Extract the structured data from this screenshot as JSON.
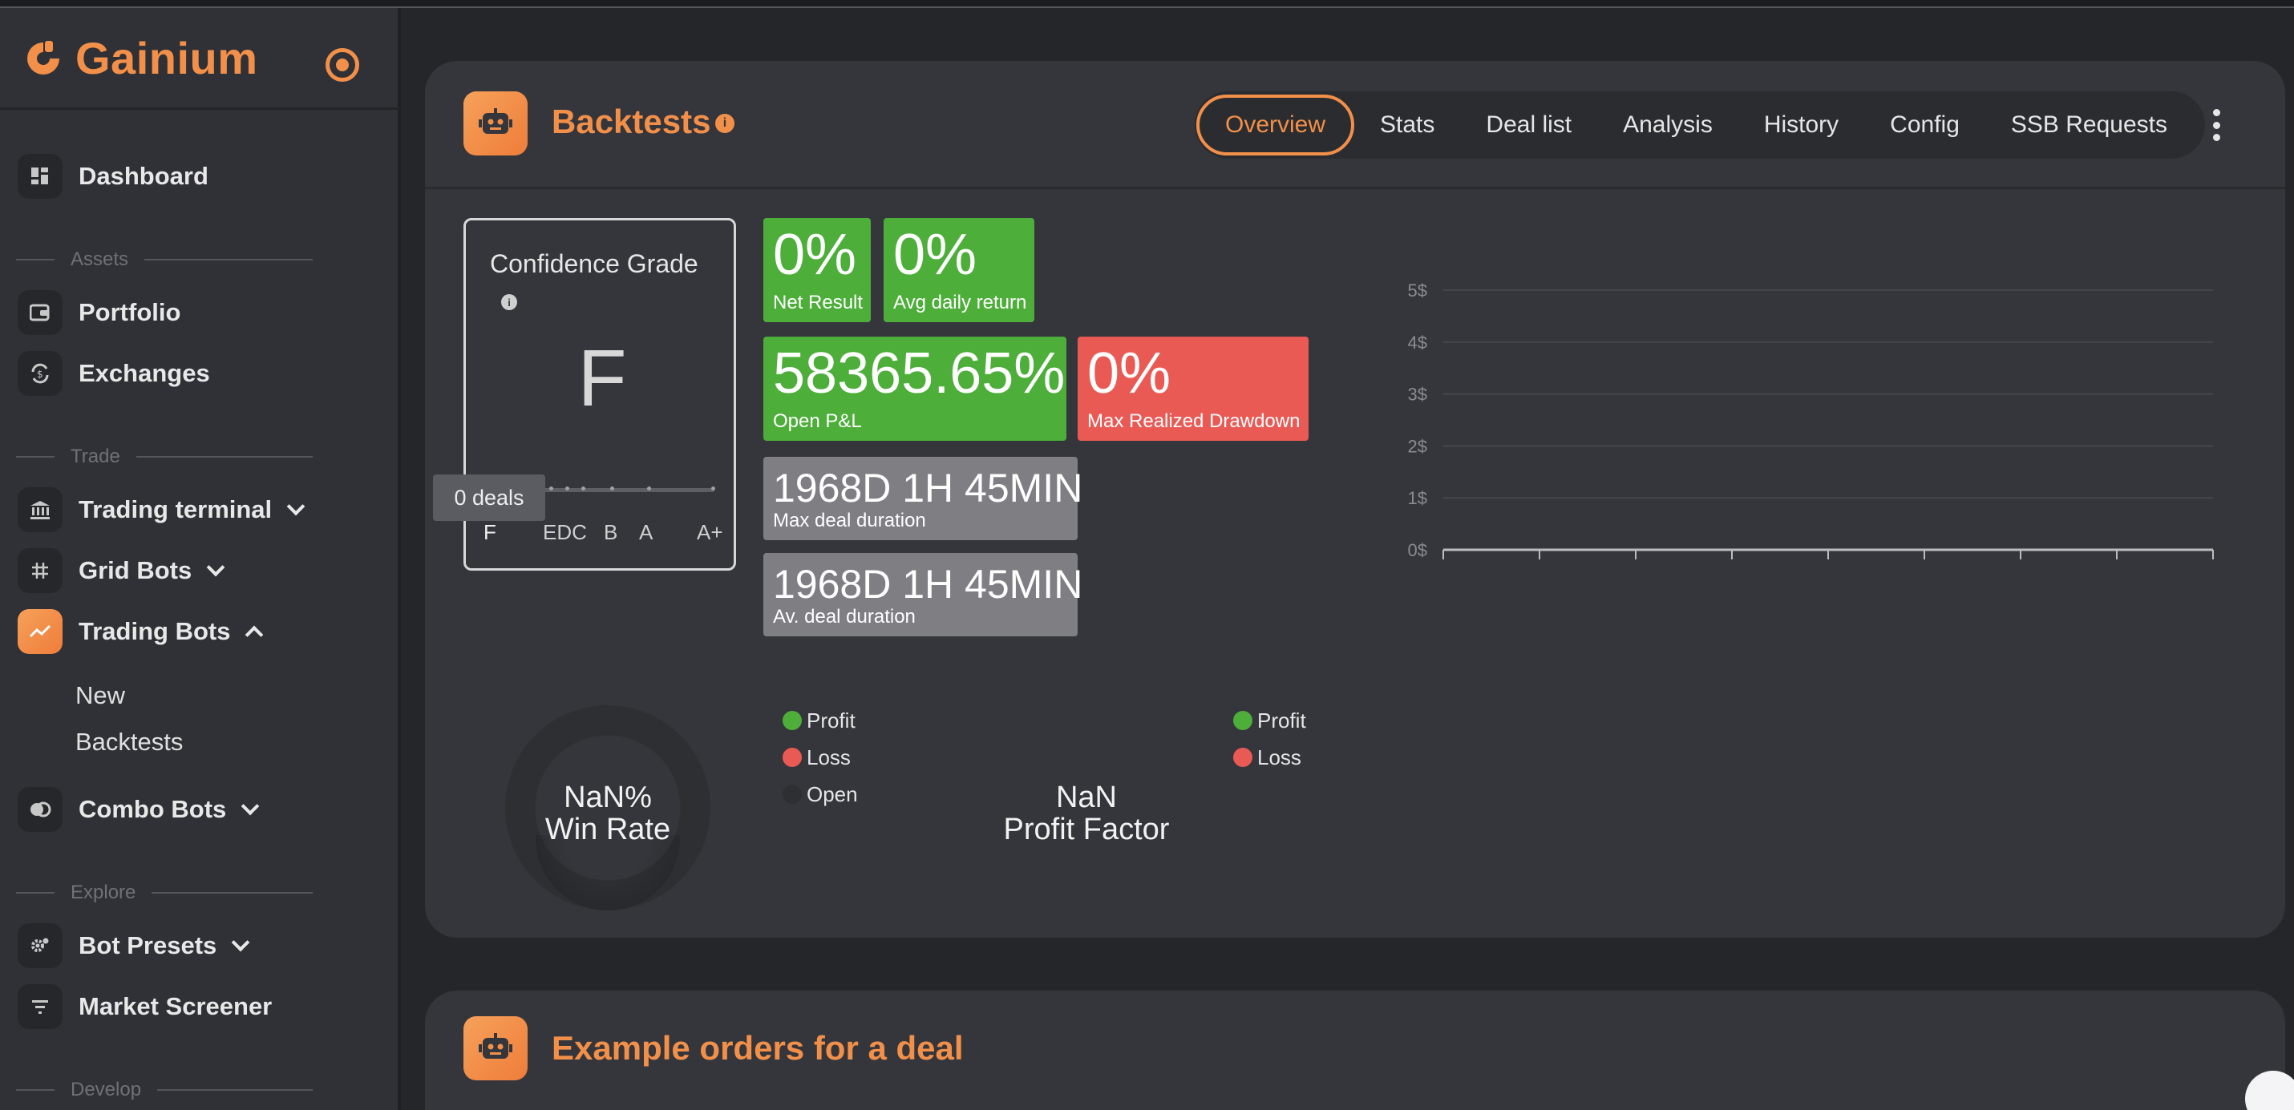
{
  "app": {
    "name": "Gainium"
  },
  "sidebar": {
    "dashboard": "Dashboard",
    "sections": {
      "assets": "Assets",
      "trade": "Trade",
      "explore": "Explore",
      "develop": "Develop"
    },
    "portfolio": "Portfolio",
    "exchanges": "Exchanges",
    "trading_terminal": "Trading terminal",
    "grid_bots": "Grid Bots",
    "trading_bots": "Trading Bots",
    "trading_bots_sub": [
      "New",
      "Backtests"
    ],
    "combo_bots": "Combo Bots",
    "bot_presets": "Bot Presets",
    "market_screener": "Market Screener"
  },
  "header": {
    "title": "Backtests",
    "tabs": [
      "Overview",
      "Stats",
      "Deal list",
      "Analysis",
      "History",
      "Config",
      "SSB Requests"
    ],
    "active_tab": "Overview"
  },
  "confidence": {
    "title": "Confidence Grade",
    "grade": "F",
    "deals_tooltip": "0 deals",
    "scale": [
      "F",
      "EDC",
      "B",
      "A",
      "A+"
    ]
  },
  "stats": {
    "net_result": {
      "value": "0%",
      "label": "Net Result"
    },
    "avg_daily": {
      "value": "0%",
      "label": "Avg daily return"
    },
    "open_pnl": {
      "value": "58365.65%",
      "label": "Open P&L"
    },
    "max_drawdown": {
      "value": "0%",
      "label": "Max Realized Drawdown"
    },
    "max_duration": {
      "value": "1968D 1H 45MIN",
      "label": "Max deal duration"
    },
    "avg_duration": {
      "value": "1968D 1H 45MIN",
      "label": "Av. deal duration"
    }
  },
  "chart_data": {
    "type": "line",
    "y_ticks": [
      "0$",
      "1$",
      "2$",
      "3$",
      "4$",
      "5$"
    ],
    "ylim": [
      0,
      5
    ],
    "series": [],
    "grid": true
  },
  "winrate": {
    "value": "NaN%",
    "label": "Win Rate",
    "legend": [
      "Profit",
      "Loss",
      "Open"
    ]
  },
  "profit_factor": {
    "value": "NaN",
    "label": "Profit Factor",
    "legend": [
      "Profit",
      "Loss"
    ]
  },
  "panel2": {
    "title": "Example orders for a deal"
  },
  "colors": {
    "accent": "#f2904a",
    "profit": "#4dae3a",
    "loss": "#ea5a55",
    "open": "#2e2f33",
    "neutral": "#7e7e83"
  },
  "icons": {
    "dashboard": "grid-icon",
    "portfolio": "wallet-icon",
    "exchanges": "exchange-icon",
    "trading_terminal": "bank-icon",
    "grid_bots": "hash-icon",
    "trading_bots": "trend-icon",
    "combo_bots": "combo-icon",
    "bot_presets": "gear-icon",
    "market_screener": "filter-icon"
  }
}
